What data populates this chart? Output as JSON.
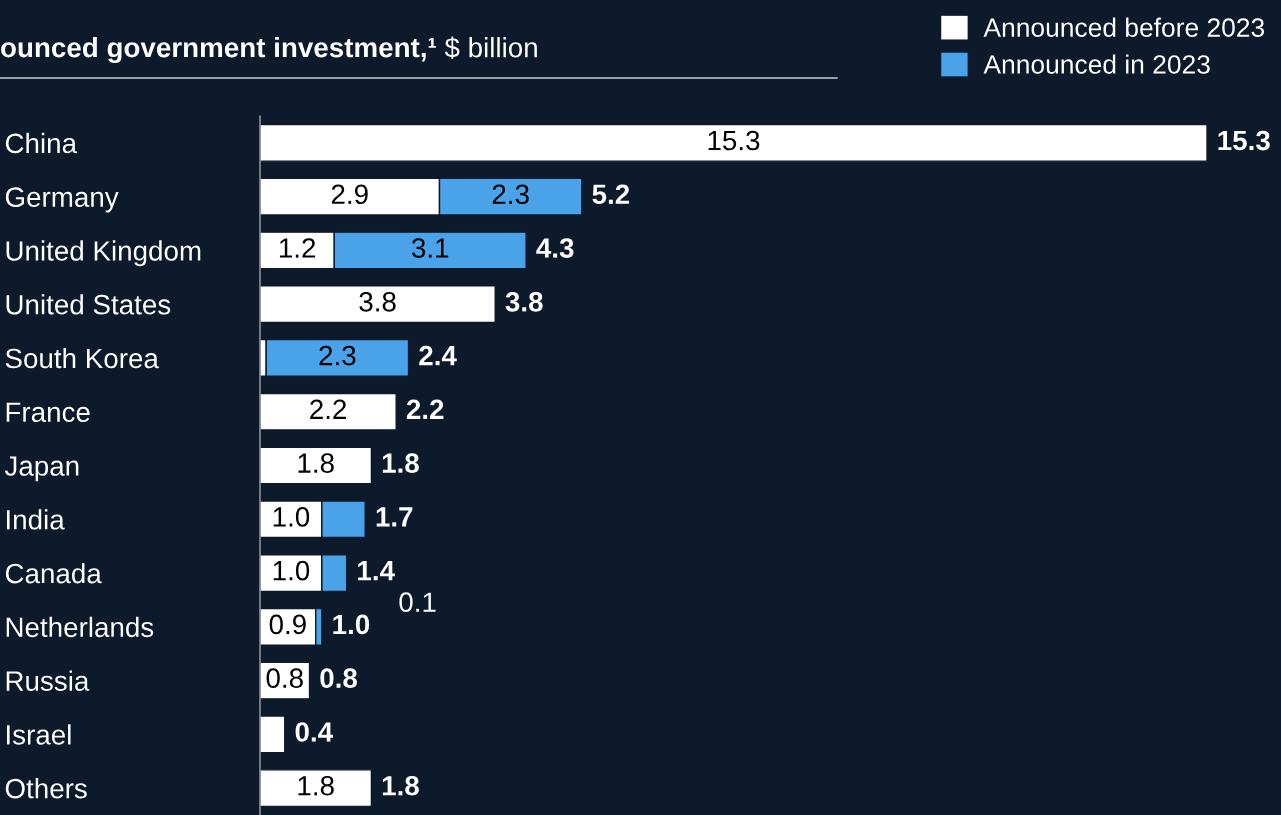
{
  "chart_data": {
    "type": "bar",
    "orientation": "horizontal",
    "stacked": true,
    "title": "ounced government investment,¹",
    "subtitle": "$ billion",
    "categories": [
      "China",
      "Germany",
      "United Kingdom",
      "United States",
      "South Korea",
      "France",
      "Japan",
      "India",
      "Canada",
      "Netherlands",
      "Russia",
      "Israel",
      "Others"
    ],
    "series": [
      {
        "name": "Announced before 2023",
        "color": "#ffffff",
        "values": [
          15.3,
          2.9,
          1.2,
          3.8,
          0.1,
          2.2,
          1.8,
          1.0,
          1.0,
          0.9,
          0.8,
          0.4,
          1.8
        ],
        "value_labels": [
          "15.3",
          "2.9",
          "1.2",
          "3.8",
          null,
          "2.2",
          "1.8",
          "1.0",
          "1.0",
          "0.9",
          "0.8",
          null,
          "1.8"
        ]
      },
      {
        "name": "Announced in 2023",
        "color": "#4aa3e8",
        "values": [
          null,
          2.3,
          3.1,
          null,
          2.3,
          null,
          null,
          0.7,
          0.4,
          0.1,
          null,
          null,
          null
        ],
        "value_labels": [
          null,
          "2.3",
          "3.1",
          null,
          "2.3",
          null,
          null,
          null,
          null,
          "0.1",
          null,
          null,
          null
        ]
      }
    ],
    "totals": [
      "15.3",
      "5.2",
      "4.3",
      "3.8",
      "2.4",
      "2.2",
      "1.8",
      "1.7",
      "1.4",
      "1.0",
      "0.8",
      "0.4",
      "1.8"
    ],
    "xlim": [
      0,
      15.3
    ],
    "tick_labels": "y",
    "legend": "top right",
    "grid": false
  }
}
